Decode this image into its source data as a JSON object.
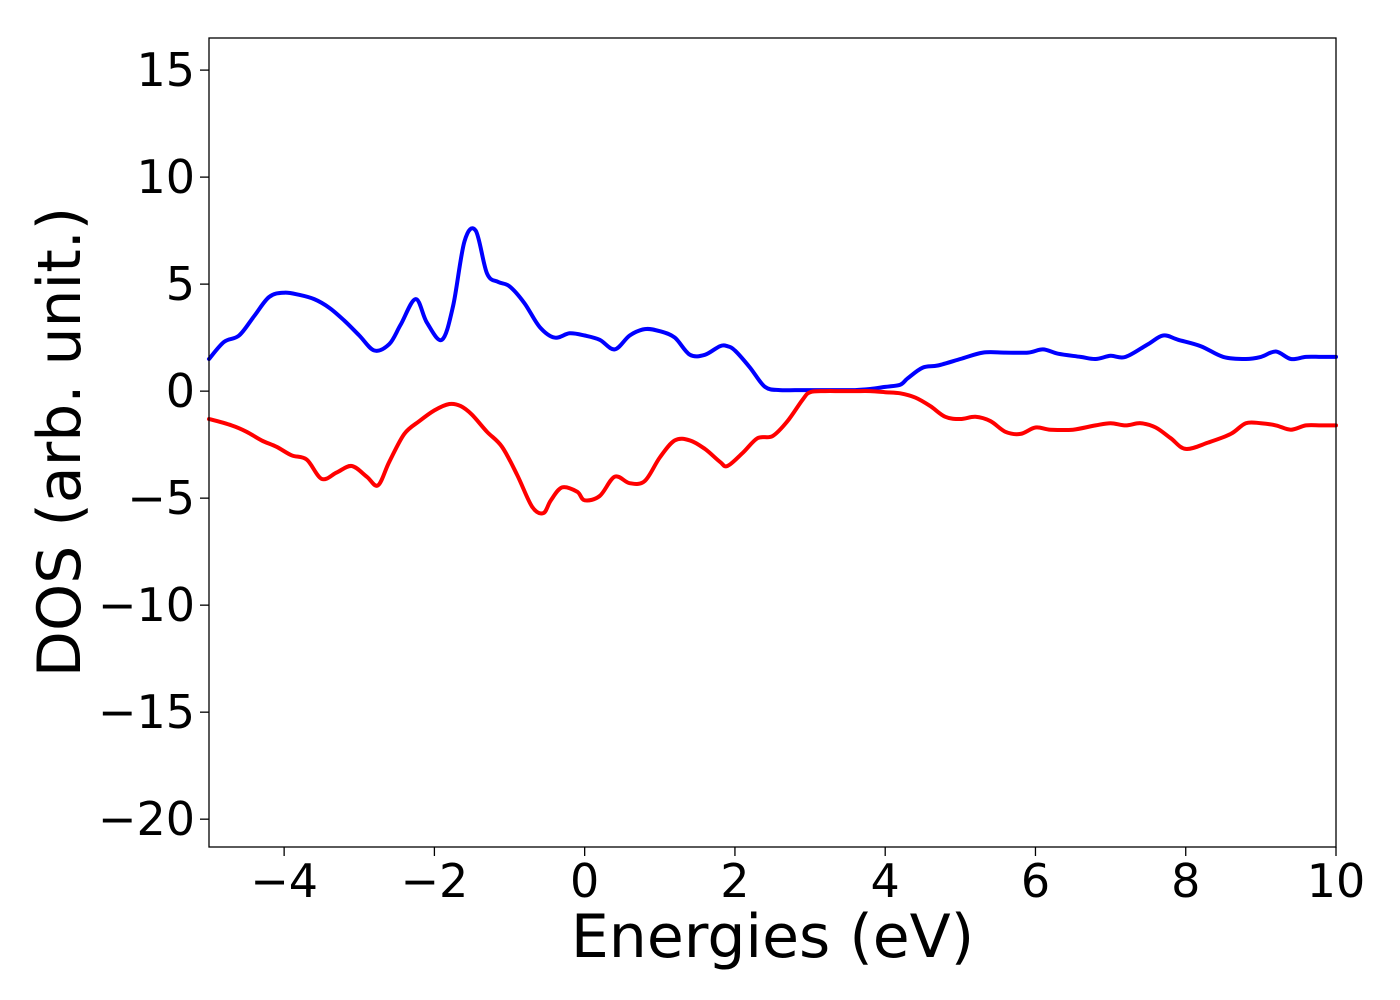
{
  "chart_data": {
    "type": "line",
    "title": "",
    "xlabel": "Energies (eV)",
    "ylabel": "DOS (arb. unit.)",
    "xlim": [
      -5,
      10
    ],
    "ylim": [
      -21.3,
      16.5
    ],
    "xticks": [
      -4,
      -2,
      0,
      2,
      4,
      6,
      8,
      10
    ],
    "yticks": [
      -20,
      -15,
      -10,
      -5,
      0,
      5,
      10,
      15
    ],
    "xtick_labels": [
      "−4",
      "−2",
      "0",
      "2",
      "4",
      "6",
      "8",
      "10"
    ],
    "ytick_labels": [
      "−20",
      "−15",
      "−10",
      "−5",
      "0",
      "5",
      "10",
      "15"
    ],
    "grid": false,
    "legend": "none",
    "series": [
      {
        "color": "#0000ff",
        "x": [
          -5.0,
          -4.8,
          -4.6,
          -4.4,
          -4.2,
          -4.0,
          -3.8,
          -3.6,
          -3.4,
          -3.2,
          -3.0,
          -2.8,
          -2.6,
          -2.45,
          -2.25,
          -2.1,
          -1.9,
          -1.75,
          -1.6,
          -1.45,
          -1.3,
          -1.15,
          -1.0,
          -0.8,
          -0.6,
          -0.4,
          -0.2,
          0.0,
          0.2,
          0.4,
          0.6,
          0.8,
          1.0,
          1.2,
          1.4,
          1.6,
          1.8,
          1.9,
          2.0,
          2.2,
          2.4,
          2.6,
          2.8,
          3.0,
          3.2,
          3.4,
          3.6,
          3.8,
          4.0,
          4.2,
          4.3,
          4.5,
          4.7,
          5.0,
          5.3,
          5.6,
          5.9,
          6.1,
          6.3,
          6.6,
          6.8,
          7.0,
          7.2,
          7.5,
          7.7,
          7.9,
          8.2,
          8.5,
          8.8,
          9.0,
          9.2,
          9.4,
          9.6,
          9.8,
          10.0
        ],
        "y": [
          1.5,
          2.3,
          2.6,
          3.5,
          4.4,
          4.6,
          4.5,
          4.3,
          3.9,
          3.3,
          2.6,
          1.9,
          2.2,
          3.1,
          4.3,
          3.2,
          2.4,
          4.0,
          7.0,
          7.5,
          5.5,
          5.1,
          4.9,
          4.1,
          3.0,
          2.5,
          2.7,
          2.6,
          2.4,
          1.95,
          2.6,
          2.9,
          2.8,
          2.5,
          1.7,
          1.7,
          2.1,
          2.1,
          1.9,
          1.1,
          0.2,
          0.05,
          0.05,
          0.05,
          0.05,
          0.05,
          0.05,
          0.1,
          0.2,
          0.3,
          0.6,
          1.1,
          1.2,
          1.5,
          1.8,
          1.8,
          1.8,
          1.95,
          1.75,
          1.6,
          1.5,
          1.65,
          1.6,
          2.2,
          2.6,
          2.4,
          2.1,
          1.6,
          1.5,
          1.6,
          1.85,
          1.5,
          1.6,
          1.6,
          1.6
        ]
      },
      {
        "color": "#ff0000",
        "x": [
          -5.0,
          -4.7,
          -4.5,
          -4.3,
          -4.1,
          -3.9,
          -3.7,
          -3.5,
          -3.3,
          -3.1,
          -2.9,
          -2.75,
          -2.6,
          -2.4,
          -2.2,
          -2.0,
          -1.8,
          -1.65,
          -1.5,
          -1.3,
          -1.1,
          -0.9,
          -0.7,
          -0.55,
          -0.45,
          -0.3,
          -0.1,
          0.0,
          0.2,
          0.4,
          0.6,
          0.8,
          1.0,
          1.2,
          1.4,
          1.6,
          1.8,
          1.9,
          2.1,
          2.3,
          2.5,
          2.7,
          2.9,
          3.0,
          3.2,
          3.4,
          3.6,
          3.8,
          4.0,
          4.2,
          4.4,
          4.6,
          4.8,
          5.0,
          5.2,
          5.4,
          5.6,
          5.8,
          6.0,
          6.2,
          6.5,
          6.8,
          7.0,
          7.2,
          7.4,
          7.6,
          7.8,
          8.0,
          8.3,
          8.6,
          8.8,
          9.0,
          9.2,
          9.4,
          9.6,
          9.8,
          10.0
        ],
        "y": [
          -1.3,
          -1.6,
          -1.9,
          -2.3,
          -2.6,
          -3.0,
          -3.2,
          -4.1,
          -3.8,
          -3.5,
          -4.0,
          -4.4,
          -3.3,
          -2.0,
          -1.4,
          -0.9,
          -0.6,
          -0.7,
          -1.1,
          -1.9,
          -2.6,
          -3.9,
          -5.4,
          -5.7,
          -5.1,
          -4.5,
          -4.7,
          -5.1,
          -4.9,
          -4.0,
          -4.3,
          -4.2,
          -3.1,
          -2.3,
          -2.3,
          -2.7,
          -3.3,
          -3.5,
          -2.9,
          -2.2,
          -2.1,
          -1.4,
          -0.4,
          -0.05,
          0.0,
          0.0,
          0.0,
          0.0,
          -0.05,
          -0.1,
          -0.3,
          -0.7,
          -1.2,
          -1.3,
          -1.2,
          -1.4,
          -1.9,
          -2.0,
          -1.7,
          -1.8,
          -1.8,
          -1.6,
          -1.5,
          -1.6,
          -1.5,
          -1.7,
          -2.2,
          -2.7,
          -2.4,
          -2.0,
          -1.5,
          -1.5,
          -1.6,
          -1.8,
          -1.6,
          -1.6,
          -1.6
        ]
      }
    ]
  }
}
